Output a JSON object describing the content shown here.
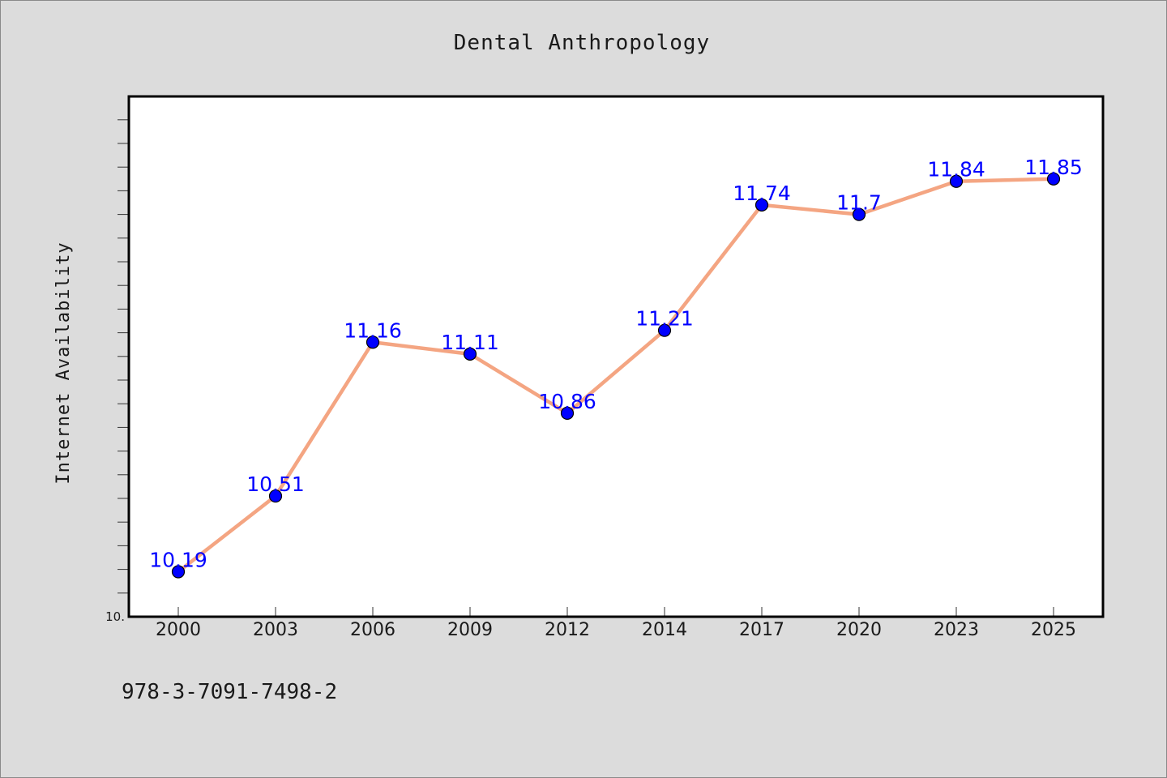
{
  "chart_data": {
    "type": "line",
    "title": "Dental Anthropology",
    "xlabel": "",
    "ylabel": "Internet Availability",
    "categories": [
      "2000",
      "2003",
      "2006",
      "2009",
      "2012",
      "2014",
      "2017",
      "2020",
      "2023",
      "2025"
    ],
    "series": [
      {
        "values": [
          10.19,
          10.51,
          11.16,
          11.11,
          10.86,
          11.21,
          11.74,
          11.7,
          11.84,
          11.85
        ],
        "labels": [
          "10.19",
          "10.51",
          "11.16",
          "11.11",
          "10.86",
          "11.21",
          "11.74",
          "11.7",
          "11.84",
          "11.85"
        ]
      }
    ],
    "ylim": [
      10.0,
      12.2
    ],
    "ytick_labels": [
      "10."
    ],
    "minor_tick_step": 0.1,
    "grid": false,
    "colors": {
      "line": "#f4a582",
      "marker": "#0000ff",
      "marker_edge": "#000000",
      "data_label": "#0000ff",
      "plot_background": "#ffffff",
      "figure_background": "#dcdcdc"
    }
  },
  "footnote": "978-3-7091-7498-2"
}
